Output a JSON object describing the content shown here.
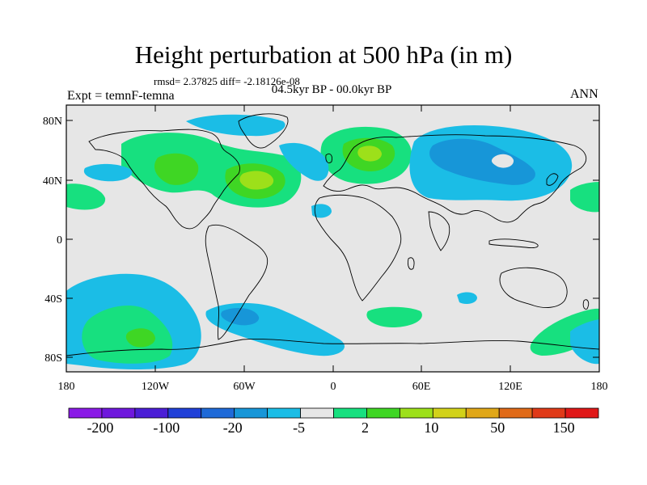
{
  "header": {
    "title": "Height perturbation at 500 hPa (in m)",
    "stats": "rmsd= 2.37825 diff= -2.18126e-08",
    "period": "04.5kyr BP - 00.0kyr BP",
    "experiment": "Expt = temnF-temna",
    "season": "ANN"
  },
  "axes": {
    "lat_labels": [
      "80N",
      "40N",
      "0",
      "40S",
      "80S"
    ],
    "lon_labels": [
      "180",
      "120W",
      "60W",
      "0",
      "60E",
      "120E",
      "180"
    ]
  },
  "colorbar": {
    "colors": [
      "#8a1ae6",
      "#6f18dd",
      "#4b1ed6",
      "#2040d8",
      "#1f6ad8",
      "#1796d8",
      "#1bbde6",
      "#e6e6e6",
      "#17e07f",
      "#3fd624",
      "#9de01a",
      "#d2d21a",
      "#e0a718",
      "#e06a18",
      "#e03a18",
      "#e01818"
    ],
    "labels": [
      "-200",
      "-100",
      "-20",
      "-5",
      "2",
      "10",
      "50",
      "150"
    ]
  },
  "palette": {
    "background": "#e6e6e6",
    "negative_light": "#1bbde6",
    "negative_medium": "#1796d8",
    "positive_light": "#17e07f",
    "positive_medium": "#3fd624",
    "positive_strong": "#9de01a"
  }
}
